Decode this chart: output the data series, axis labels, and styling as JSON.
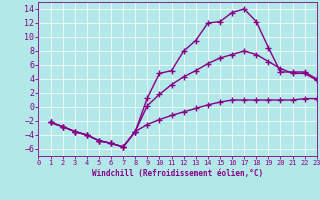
{
  "xlabel": "Windchill (Refroidissement éolien,°C)",
  "background_color": "#b3e8e8",
  "line_color": "#880088",
  "grid_color": "#ffffff",
  "xlim": [
    0,
    23
  ],
  "ylim": [
    -7,
    15
  ],
  "xticks": [
    0,
    1,
    2,
    3,
    4,
    5,
    6,
    7,
    8,
    9,
    10,
    11,
    12,
    13,
    14,
    15,
    16,
    17,
    18,
    19,
    20,
    21,
    22,
    23
  ],
  "yticks": [
    -6,
    -4,
    -2,
    0,
    2,
    4,
    6,
    8,
    10,
    12,
    14
  ],
  "curve1_x": [
    1,
    2,
    3,
    4,
    5,
    6,
    7,
    8,
    9,
    10,
    11,
    12,
    13,
    14,
    15,
    16,
    17,
    18,
    19,
    20,
    21,
    22,
    23
  ],
  "curve1_y": [
    -2.2,
    -2.8,
    -3.5,
    -4.0,
    -4.8,
    -5.2,
    -5.7,
    -3.5,
    1.3,
    4.8,
    5.2,
    8.0,
    9.5,
    12.0,
    12.2,
    13.5,
    14.0,
    12.2,
    8.5,
    5.0,
    5.0,
    5.0,
    4.0
  ],
  "curve2_x": [
    1,
    2,
    3,
    4,
    5,
    6,
    7,
    8,
    9,
    10,
    11,
    12,
    13,
    14,
    15,
    16,
    17,
    18,
    19,
    20,
    21,
    22,
    23
  ],
  "curve2_y": [
    -2.2,
    -2.8,
    -3.5,
    -4.0,
    -4.8,
    -5.2,
    -5.7,
    -3.5,
    0.2,
    1.8,
    3.2,
    4.3,
    5.2,
    6.2,
    7.0,
    7.5,
    8.0,
    7.5,
    6.5,
    5.5,
    4.8,
    4.8,
    3.8
  ],
  "curve3_x": [
    1,
    2,
    3,
    4,
    5,
    6,
    7,
    8,
    9,
    10,
    11,
    12,
    13,
    14,
    15,
    16,
    17,
    18,
    19,
    20,
    21,
    22,
    23
  ],
  "curve3_y": [
    -2.2,
    -2.8,
    -3.5,
    -4.0,
    -4.8,
    -5.2,
    -5.7,
    -3.5,
    -2.5,
    -1.8,
    -1.2,
    -0.7,
    -0.2,
    0.3,
    0.7,
    1.0,
    1.0,
    1.0,
    1.0,
    1.0,
    1.0,
    1.2,
    1.2
  ]
}
